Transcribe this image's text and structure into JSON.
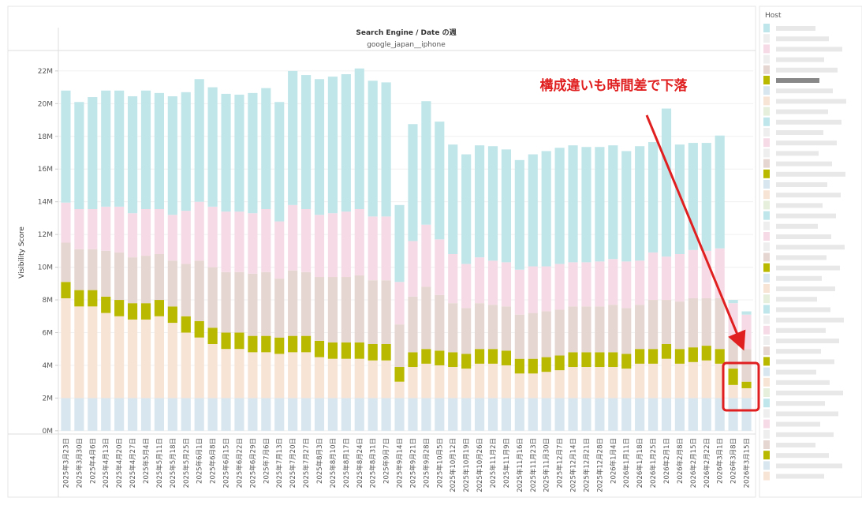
{
  "chart_data": {
    "type": "stacked-bar",
    "title": "Search Engine / Date の週",
    "subtitle": "google_japan__iphone",
    "y_label": "Visibility Score",
    "legend_title": "Host",
    "annotation": "構成違いも時間差で下落",
    "categories": [
      "2025年3月23日",
      "2025年3月30日",
      "2025年4月6日",
      "2025年4月13日",
      "2025年4月20日",
      "2025年4月27日",
      "2025年5月4日",
      "2025年5月11日",
      "2025年5月18日",
      "2025年5月25日",
      "2025年6月1日",
      "2025年6月8日",
      "2025年6月15日",
      "2025年6月22日",
      "2025年6月29日",
      "2025年7月6日",
      "2025年7月13日",
      "2025年7月20日",
      "2025年7月27日",
      "2025年8月3日",
      "2025年8月10日",
      "2025年8月17日",
      "2025年8月24日",
      "2025年8月31日",
      "2025年9月7日",
      "2025年9月14日",
      "2025年9月21日",
      "2025年9月28日",
      "2025年10月5日",
      "2025年10月12日",
      "2025年10月19日",
      "2025年10月26日",
      "2025年11月2日",
      "2025年11月9日",
      "2025年11月16日",
      "2025年11月23日",
      "2025年11月30日",
      "2025年12月7日",
      "2025年12月14日",
      "2025年12月21日",
      "2025年12月28日",
      "2026年1月4日",
      "2026年1月11日",
      "2026年1月18日",
      "2026年1月25日",
      "2026年2月1日",
      "2026年2月8日",
      "2026年2月15日",
      "2026年2月22日",
      "2026年3月1日",
      "2026年3月8日",
      "2026年3月15日"
    ],
    "series": [
      {
        "color": "#d8e7ef",
        "values": [
          2,
          2,
          2,
          2,
          2,
          2,
          2,
          2,
          2,
          2,
          2,
          2,
          2,
          2,
          2,
          2,
          2,
          2,
          2,
          2,
          2,
          2,
          2,
          2,
          2,
          2,
          2,
          2,
          2,
          2,
          2,
          2,
          2,
          2,
          2,
          2,
          2,
          2,
          2,
          2,
          2,
          2,
          2,
          2,
          2,
          2,
          2,
          2,
          2,
          2,
          2,
          2
        ]
      },
      {
        "color": "#f8e4d5",
        "values": [
          6.1,
          5.6,
          5.6,
          5.2,
          5.0,
          4.8,
          4.8,
          5.0,
          4.6,
          4.0,
          3.7,
          3.3,
          3.0,
          3.0,
          2.8,
          2.8,
          2.7,
          2.8,
          2.8,
          2.5,
          2.4,
          2.4,
          2.4,
          2.3,
          2.3,
          1.0,
          1.9,
          2.1,
          2.0,
          1.9,
          1.8,
          2.1,
          2.1,
          2.0,
          1.5,
          1.5,
          1.6,
          1.7,
          1.9,
          1.9,
          1.9,
          1.9,
          1.8,
          2.1,
          2.1,
          2.4,
          2.1,
          2.2,
          2.3,
          2.1,
          0.8,
          0.6
        ]
      },
      {
        "color": "#b9b900",
        "values": [
          1,
          1,
          1,
          1,
          1,
          1,
          1,
          1,
          1,
          1,
          1,
          1,
          1,
          1,
          1,
          1,
          1,
          1,
          1,
          1,
          1,
          1,
          1,
          1,
          1,
          0.9,
          0.9,
          0.9,
          0.9,
          0.9,
          0.9,
          0.9,
          0.9,
          0.9,
          0.9,
          0.9,
          0.9,
          0.9,
          0.9,
          0.9,
          0.9,
          0.9,
          0.9,
          0.9,
          0.9,
          0.9,
          0.9,
          0.9,
          0.9,
          0.9,
          1,
          0.4
        ]
      },
      {
        "color": "#e6d6d1",
        "values": [
          2.4,
          2.5,
          2.5,
          2.8,
          2.9,
          2.8,
          2.9,
          2.8,
          2.8,
          3.2,
          3.7,
          3.7,
          3.7,
          3.7,
          3.8,
          3.9,
          3.6,
          4.0,
          3.9,
          3.9,
          4.0,
          4.0,
          4.1,
          3.9,
          3.9,
          2.6,
          3.4,
          3.8,
          3.4,
          3.0,
          2.8,
          2.8,
          2.7,
          2.7,
          2.7,
          2.8,
          2.8,
          2.8,
          2.8,
          2.8,
          2.8,
          2.9,
          2.8,
          2.7,
          3.0,
          2.7,
          2.9,
          3.0,
          2.9,
          3.1,
          2.0,
          2.0
        ]
      },
      {
        "color": "#f6dbe6",
        "values": [
          2.45,
          2.45,
          2.45,
          2.7,
          2.8,
          2.7,
          2.85,
          2.75,
          2.8,
          3.25,
          3.6,
          3.7,
          3.7,
          3.7,
          3.7,
          3.85,
          3.5,
          4.0,
          3.85,
          3.8,
          3.9,
          4.0,
          4.05,
          3.9,
          3.9,
          2.6,
          3.4,
          3.8,
          3.4,
          3.0,
          2.7,
          2.8,
          2.7,
          2.7,
          2.75,
          2.85,
          2.75,
          2.8,
          2.7,
          2.7,
          2.75,
          2.8,
          2.85,
          2.7,
          2.9,
          2.65,
          2.9,
          2.95,
          2.9,
          3.05,
          2.0,
          2.1
        ]
      },
      {
        "color": "#c1e6ea",
        "values": [
          6.85,
          6.55,
          6.85,
          7.1,
          7.1,
          7.15,
          7.25,
          7.1,
          7.25,
          7.25,
          7.5,
          7.3,
          7.2,
          7.15,
          7.35,
          7.4,
          7.3,
          8.2,
          8.2,
          8.3,
          8.35,
          8.4,
          8.6,
          8.3,
          8.2,
          4.7,
          7.15,
          7.55,
          7.2,
          6.7,
          6.7,
          6.85,
          7.0,
          6.9,
          6.7,
          6.85,
          7.05,
          7.1,
          7.15,
          7.05,
          7.0,
          6.95,
          6.75,
          7.0,
          6.75,
          9.05,
          6.7,
          6.55,
          6.6,
          6.9,
          0.2,
          0.2
        ]
      }
    ],
    "ylim": [
      -0.2,
      23.2
    ],
    "yticks": [
      {
        "value": 0,
        "label": "0M"
      },
      {
        "value": 2,
        "label": "2M"
      },
      {
        "value": 4,
        "label": "4M"
      },
      {
        "value": 6,
        "label": "6M"
      },
      {
        "value": 8,
        "label": "8M"
      },
      {
        "value": 10,
        "label": "10M"
      },
      {
        "value": 12,
        "label": "12M"
      },
      {
        "value": 14,
        "label": "14M"
      },
      {
        "value": 16,
        "label": "16M"
      },
      {
        "value": 18,
        "label": "18M"
      },
      {
        "value": 20,
        "label": "20M"
      },
      {
        "value": 22,
        "label": "22M"
      }
    ],
    "grid": true
  }
}
